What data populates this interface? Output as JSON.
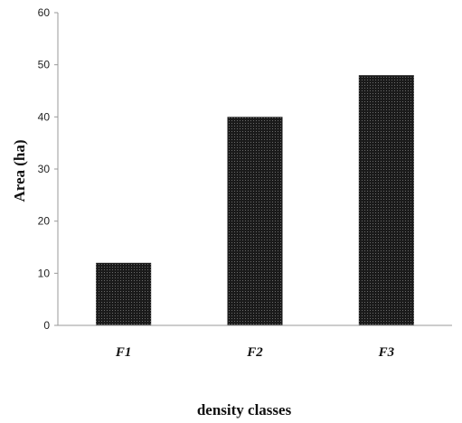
{
  "chart_data": {
    "type": "bar",
    "categories": [
      "F1",
      "F2",
      "F3"
    ],
    "values": [
      12,
      40,
      48
    ],
    "xlabel": "density classes",
    "ylabel": "Area (ha)",
    "ylim": [
      0,
      60
    ],
    "yticks": [
      0,
      10,
      20,
      30,
      40,
      50,
      60
    ],
    "grid": false,
    "legend": "none",
    "bar_color": "#1a1a1a"
  }
}
